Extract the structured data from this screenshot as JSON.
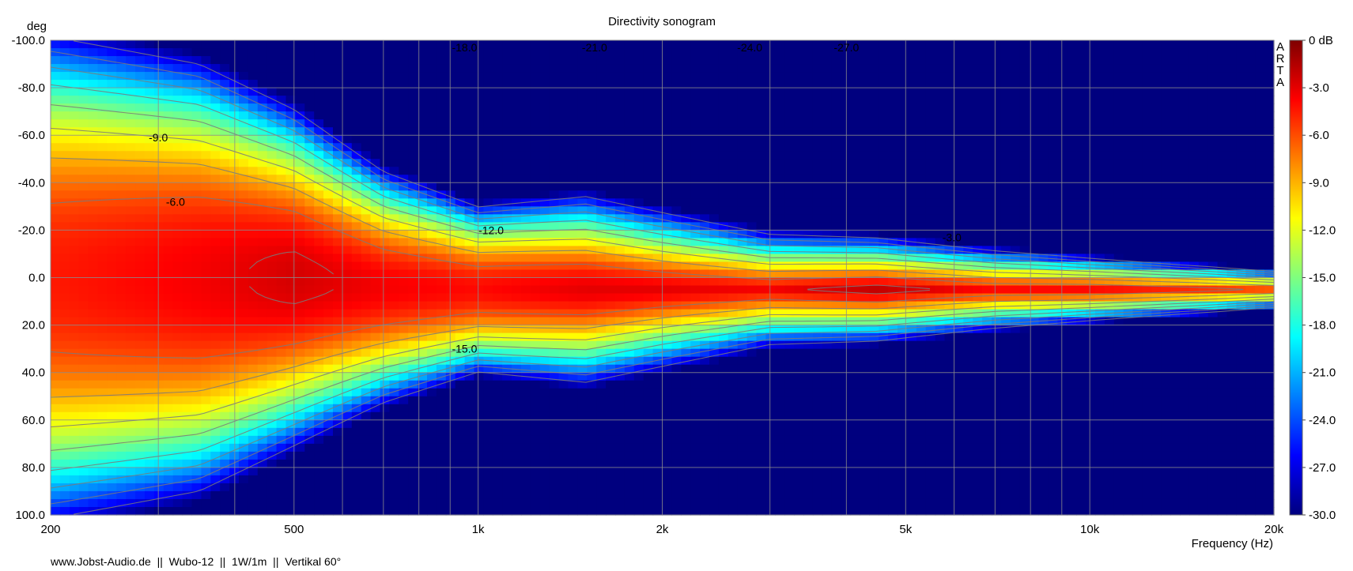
{
  "chart_data": {
    "type": "heatmap",
    "title": "Directivity sonogram",
    "ylabel": "deg",
    "xlabel": "Frequency (Hz)",
    "xscale": "log",
    "xlim": [
      200,
      20000
    ],
    "ylim": [
      -100,
      100
    ],
    "y_inverted": true,
    "x_ticks": [
      {
        "value": 200,
        "label": "200"
      },
      {
        "value": 500,
        "label": "500"
      },
      {
        "value": 1000,
        "label": "1k"
      },
      {
        "value": 2000,
        "label": "2k"
      },
      {
        "value": 5000,
        "label": "5k"
      },
      {
        "value": 10000,
        "label": "10k"
      },
      {
        "value": 20000,
        "label": "20k"
      }
    ],
    "x_minor_gridlines": [
      300,
      400,
      600,
      700,
      800,
      900,
      3000,
      4000,
      6000,
      7000,
      8000,
      9000
    ],
    "y_ticks": [
      {
        "value": -100,
        "label": "-100.0"
      },
      {
        "value": -80,
        "label": "-80.0"
      },
      {
        "value": -60,
        "label": "-60.0"
      },
      {
        "value": -40,
        "label": "-40.0"
      },
      {
        "value": -20,
        "label": "-20.0"
      },
      {
        "value": 0,
        "label": "0.0"
      },
      {
        "value": 20,
        "label": "20.0"
      },
      {
        "value": 40,
        "label": "40.0"
      },
      {
        "value": 60,
        "label": "60.0"
      },
      {
        "value": 80,
        "label": "80.0"
      },
      {
        "value": 100,
        "label": "100.0"
      }
    ],
    "grid": true,
    "colorbar": {
      "range": [
        -30,
        0
      ],
      "unit": "dB",
      "position": "right",
      "colors": [
        "#00007f",
        "#0000ff",
        "#007fff",
        "#00ffff",
        "#7fff7f",
        "#ffff00",
        "#ff7f00",
        "#ff0000",
        "#7f0000"
      ],
      "ticks": [
        {
          "value": 0,
          "label": "0 dB"
        },
        {
          "value": -3,
          "label": "-3.0"
        },
        {
          "value": -6,
          "label": "-6.0"
        },
        {
          "value": -9,
          "label": "-9.0"
        },
        {
          "value": -12,
          "label": "-12.0"
        },
        {
          "value": -15,
          "label": "-15.0"
        },
        {
          "value": -18,
          "label": "-18.0"
        },
        {
          "value": -21,
          "label": "-21.0"
        },
        {
          "value": -24,
          "label": "-24.0"
        },
        {
          "value": -27,
          "label": "-27.0"
        },
        {
          "value": -30,
          "label": "-30.0"
        }
      ]
    },
    "contour_interval_db": 3,
    "contour_labels": [
      {
        "text": "-18.0",
        "freq": 950,
        "deg": -97
      },
      {
        "text": "-21.0",
        "freq": 1550,
        "deg": -97
      },
      {
        "text": "-24.0",
        "freq": 2780,
        "deg": -97
      },
      {
        "text": "-27.0",
        "freq": 4000,
        "deg": -97
      },
      {
        "text": "-9.0",
        "freq": 300,
        "deg": -59
      },
      {
        "text": "-6.0",
        "freq": 320,
        "deg": -32
      },
      {
        "text": "-12.0",
        "freq": 1050,
        "deg": -20
      },
      {
        "text": "-3.0",
        "freq": 5950,
        "deg": -17
      },
      {
        "text": "-15.0",
        "freq": 950,
        "deg": 30
      }
    ],
    "directivity": {
      "frequencies": [
        200,
        350,
        500,
        700,
        1000,
        1500,
        2000,
        3000,
        4500,
        7000,
        10000,
        14000,
        16000,
        20000
      ],
      "beam_center_deg": [
        0,
        0,
        0,
        4,
        5,
        5,
        5,
        5,
        5,
        5,
        5,
        5,
        5,
        5
      ],
      "beam_halfwidth_deg": [
        115,
        100,
        78,
        55,
        40,
        45,
        38,
        28,
        25,
        20,
        16,
        13,
        12,
        10
      ],
      "on_axis_db": [
        -4.5,
        -3.5,
        -2.5,
        -3.5,
        -4,
        -3,
        -3,
        -3.5,
        -2,
        -4,
        -4,
        -5,
        -5.5,
        -6.5
      ],
      "rolloff_exponent": [
        2.3,
        2.3,
        2.1,
        2.0,
        1.9,
        1.6,
        1.4,
        1.3,
        1.3,
        1.3,
        1.35,
        1.4,
        1.4,
        1.4
      ]
    },
    "brand_label": "ARTA"
  },
  "footer": {
    "credit": "www.Jobst-Audio.de  ||  Wubo-12  ||  1W/1m  ||  Vertikal 60°"
  }
}
